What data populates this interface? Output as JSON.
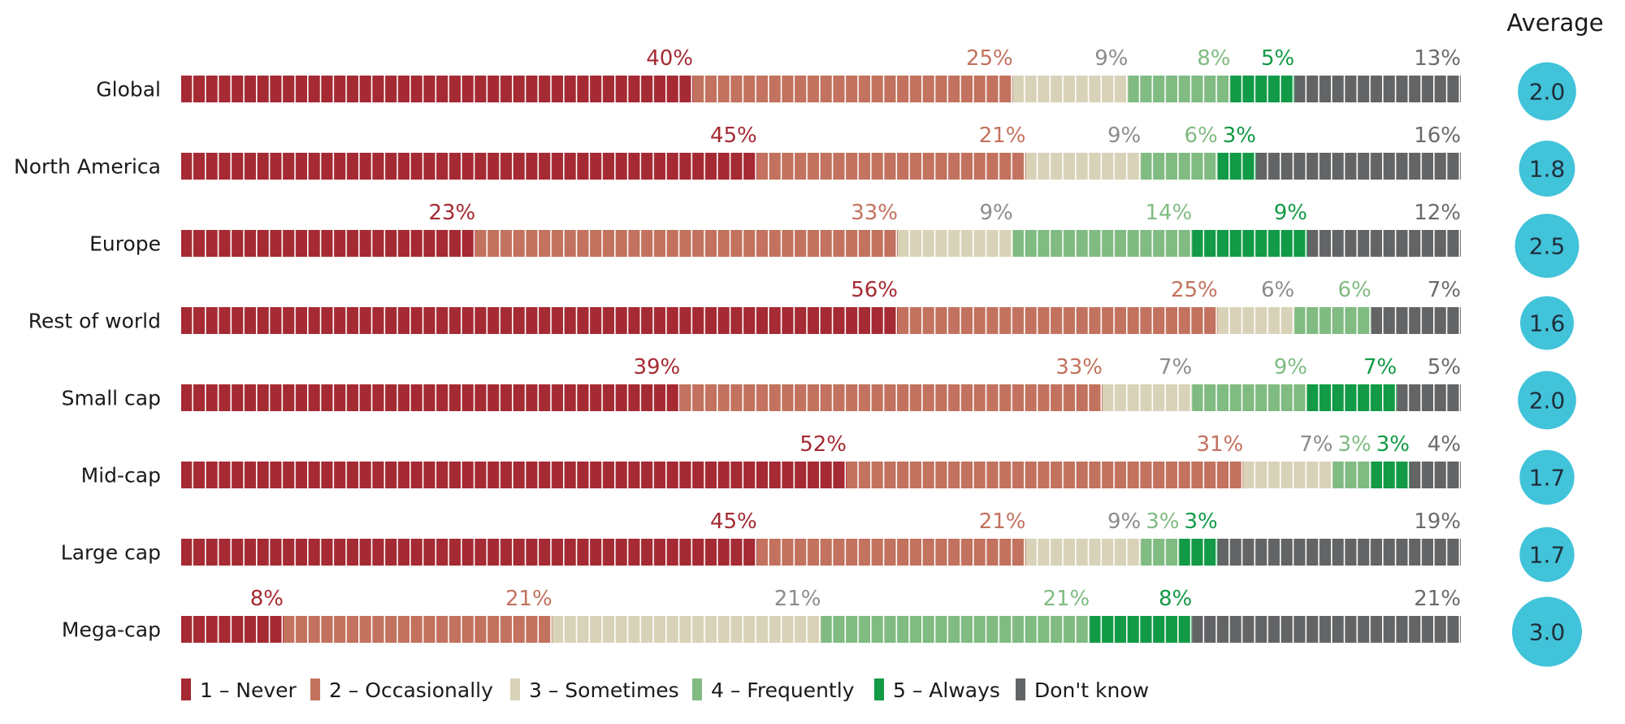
{
  "chart_data": {
    "type": "bar",
    "stacked": true,
    "orientation": "horizontal",
    "average_title": "Average",
    "categories": [
      "Global",
      "North America",
      "Europe",
      "Rest of world",
      "Small cap",
      "Mid-cap",
      "Large cap",
      "Mega-cap"
    ],
    "series": [
      {
        "name": "1 – Never",
        "color": "#a52a33",
        "label_color": "#a52a33",
        "values": [
          40,
          45,
          23,
          56,
          39,
          52,
          45,
          8
        ]
      },
      {
        "name": "2 – Occasionally",
        "color": "#c2725e",
        "label_color": "#c2725e",
        "values": [
          25,
          21,
          33,
          25,
          33,
          31,
          21,
          21
        ]
      },
      {
        "name": "3 – Sometimes",
        "color": "#d8d3b8",
        "label_color": "#8c8c8c",
        "values": [
          9,
          9,
          9,
          6,
          7,
          7,
          9,
          21
        ]
      },
      {
        "name": "4 – Frequently",
        "color": "#80bb82",
        "label_color": "#80bb82",
        "values": [
          8,
          6,
          14,
          6,
          9,
          3,
          3,
          21
        ]
      },
      {
        "name": "5 – Always",
        "color": "#129a46",
        "label_color": "#129a46",
        "values": [
          5,
          3,
          9,
          0,
          7,
          3,
          3,
          8
        ]
      },
      {
        "name": "Don't know",
        "color": "#636466",
        "label_color": "#6b6b6b",
        "values": [
          13,
          16,
          12,
          7,
          5,
          4,
          19,
          21
        ]
      }
    ],
    "averages": [
      "2.0",
      "1.8",
      "2.5",
      "1.6",
      "2.0",
      "1.7",
      "1.7",
      "3.0"
    ],
    "average_values": [
      2.0,
      1.8,
      2.5,
      1.6,
      2.0,
      1.7,
      1.7,
      3.0
    ],
    "average_color": "#41c3da",
    "legend_position": "bottom",
    "grid": false
  }
}
